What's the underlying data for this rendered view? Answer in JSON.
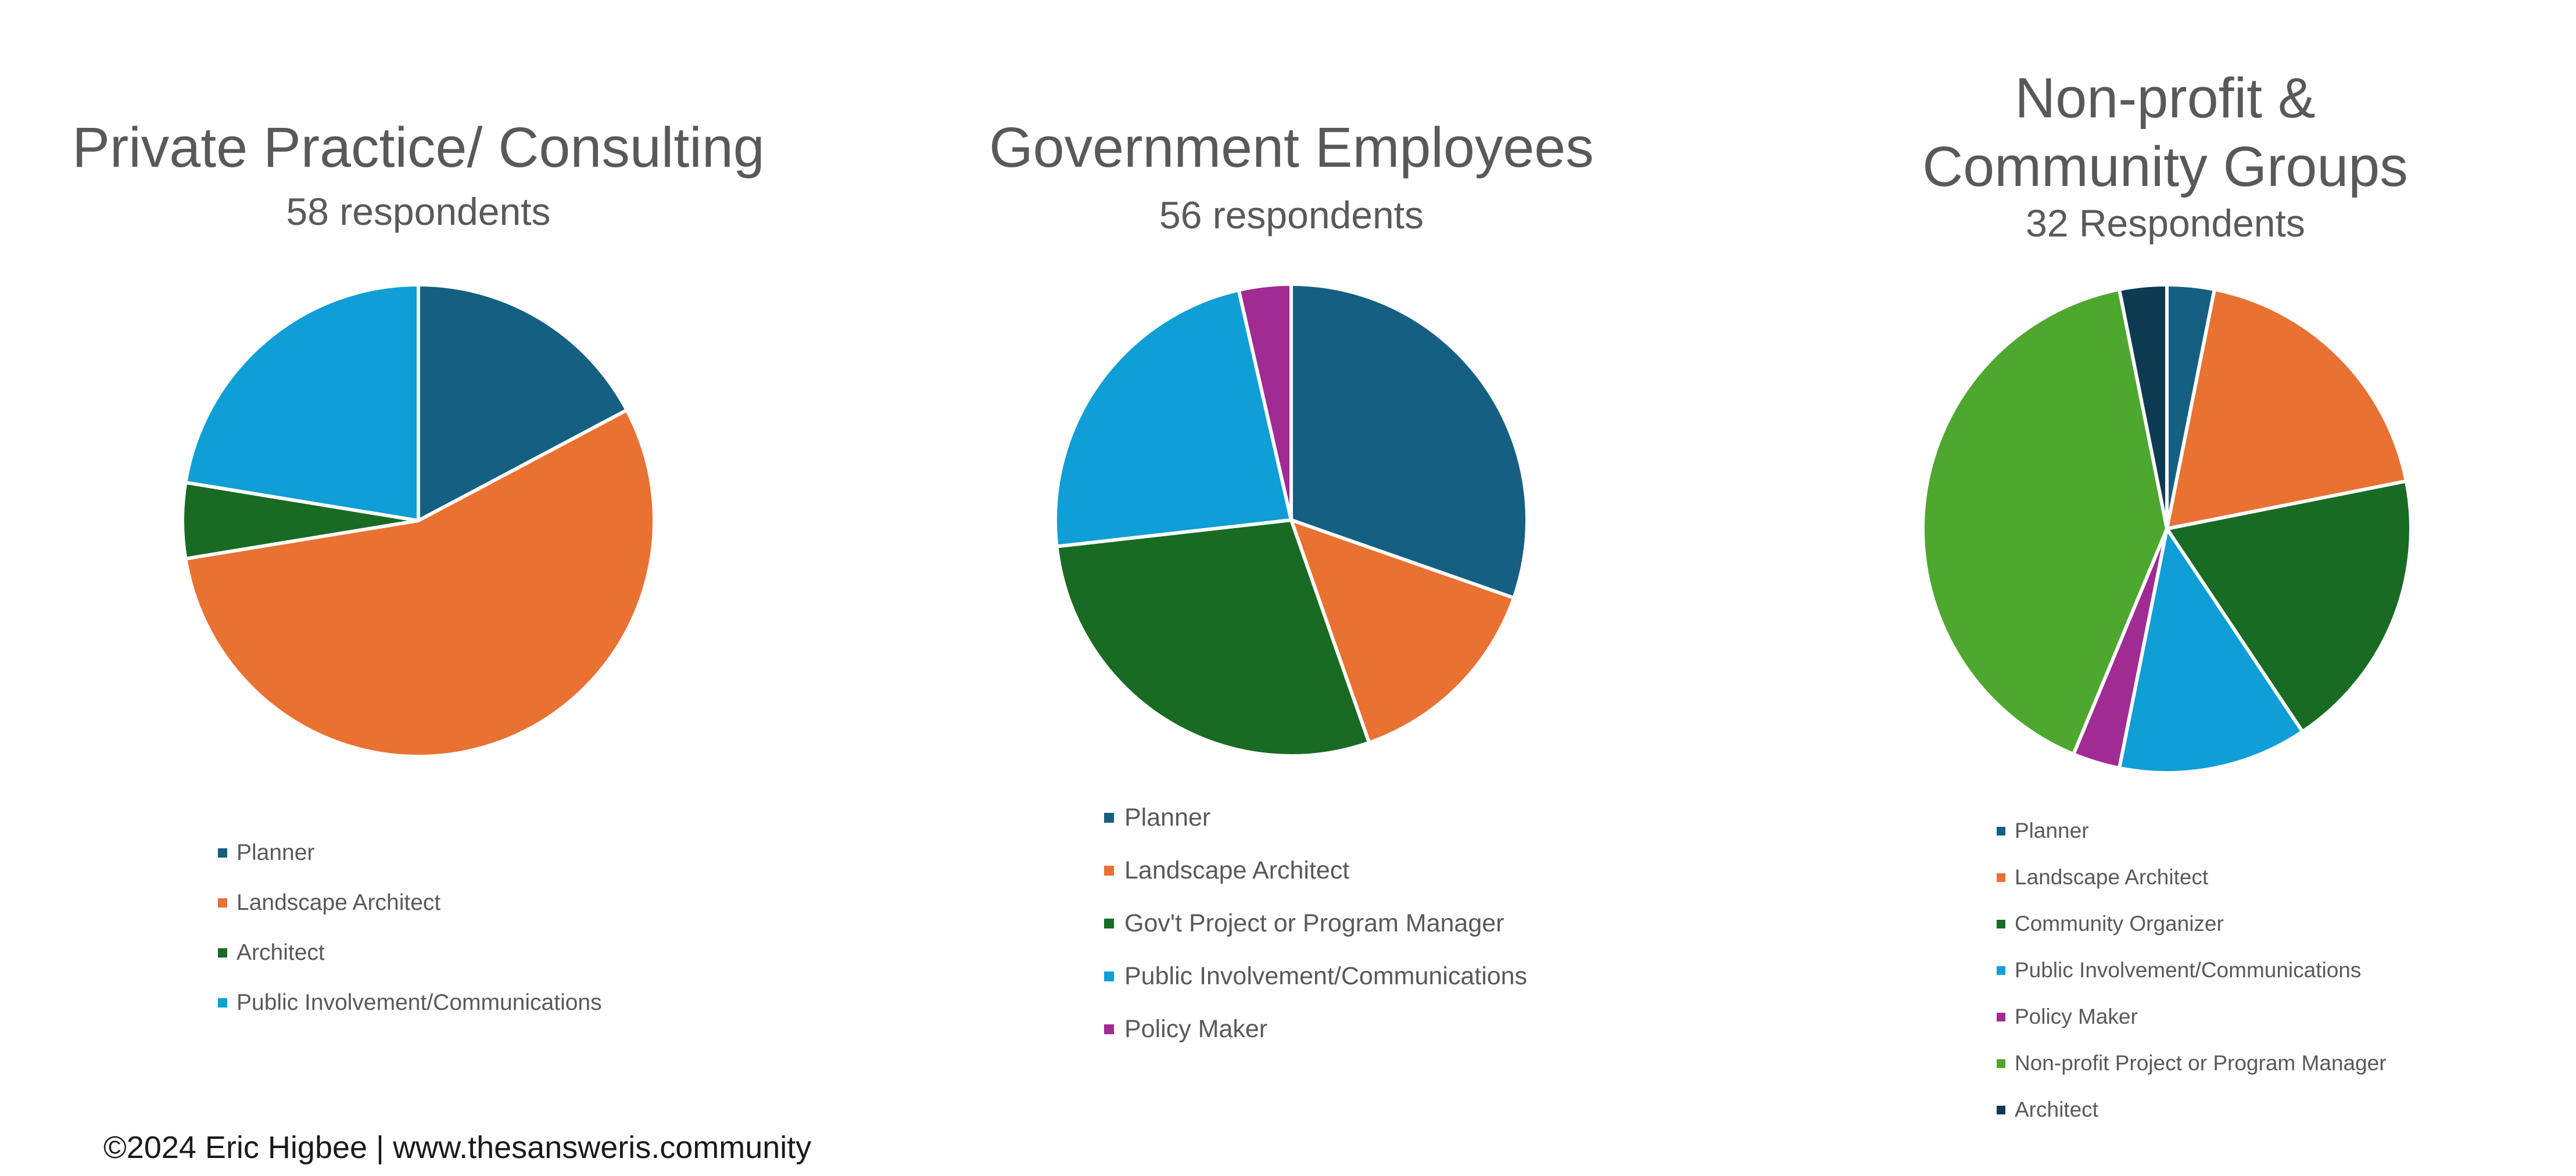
{
  "footer": "©2024 Eric Higbee | www.thesansweris.community",
  "chart_data": [
    {
      "type": "pie",
      "title": "Private Practice/ Consulting",
      "subtitle": "58 respondents",
      "legend_position": "bottom",
      "categories": [
        "Planner",
        "Landscape Architect",
        "Architect",
        "Public Involvement/Communications"
      ],
      "values": [
        10,
        32,
        3,
        13
      ],
      "colors": [
        "#156082",
        "#E97132",
        "#196B24",
        "#0F9ED5"
      ]
    },
    {
      "type": "pie",
      "title": "Government Employees",
      "subtitle": "56 respondents",
      "legend_position": "bottom",
      "categories": [
        "Planner",
        "Landscape Architect",
        "Gov't Project or Program Manager",
        "Public Involvement/Communications",
        "Policy Maker"
      ],
      "values": [
        17,
        8,
        16,
        13,
        2
      ],
      "colors": [
        "#156082",
        "#E97132",
        "#196B24",
        "#0F9ED5",
        "#A02B93"
      ]
    },
    {
      "type": "pie",
      "title": "Non-profit & Community Groups",
      "subtitle": "32 Respondents",
      "legend_position": "bottom",
      "categories": [
        "Planner",
        "Landscape Architect",
        "Community Organizer",
        "Public Involvement/Communications",
        "Policy Maker",
        "Non-profit Project or Program Manager",
        "Architect"
      ],
      "values": [
        1,
        6,
        6,
        4,
        1,
        13,
        1
      ],
      "colors": [
        "#156082",
        "#E97132",
        "#196B24",
        "#0F9ED5",
        "#A02B93",
        "#4EA72E",
        "#0E3B52"
      ]
    }
  ]
}
